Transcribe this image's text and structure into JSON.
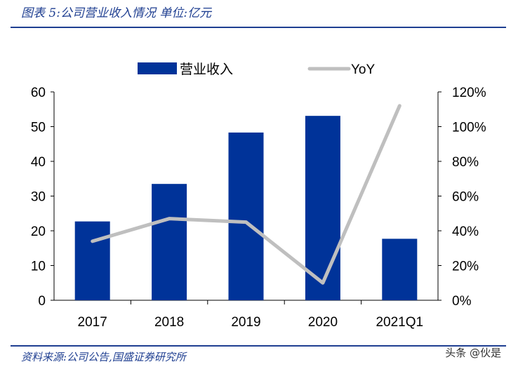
{
  "header": {
    "title": "图表 5:公司营业收入情况   单位:亿元"
  },
  "footer": {
    "source": "资料来源:公司公告,国盛证券研究所",
    "watermark": "头条 @伙是"
  },
  "colors": {
    "bar": "#003399",
    "line": "#bfbfbf",
    "brand": "#1f3f91"
  },
  "chart_data": {
    "type": "bar",
    "categories": [
      "2017",
      "2018",
      "2019",
      "2020",
      "2021Q1"
    ],
    "series": [
      {
        "name": "营业收入",
        "type": "bar",
        "axis": "left",
        "values": [
          22.7,
          33.5,
          48.3,
          53.1,
          17.7
        ]
      },
      {
        "name": "YoY",
        "type": "line",
        "axis": "right",
        "values": [
          34,
          47,
          45,
          10,
          112
        ]
      }
    ],
    "y_left": {
      "min": 0,
      "max": 60,
      "ticks": [
        "0",
        "10",
        "20",
        "30",
        "40",
        "50",
        "60"
      ]
    },
    "y_right": {
      "min": 0,
      "max": 120,
      "ticks": [
        "0%",
        "20%",
        "40%",
        "60%",
        "80%",
        "100%",
        "120%"
      ]
    },
    "grid": false,
    "legend": "top-center"
  }
}
